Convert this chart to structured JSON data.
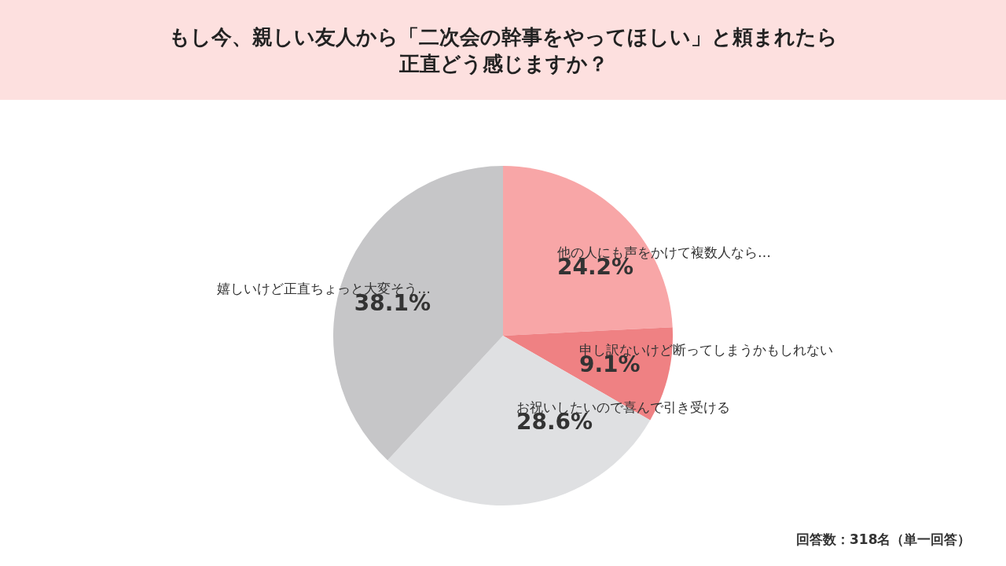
{
  "chart_data": {
    "type": "pie",
    "title": "もし今、親しい友人から「二次会の幹事をやってほしい」と頼まれたら正直どう感じますか？",
    "categories": [
      "他の人にも声をかけて複数人なら…",
      "申し訳ないけど断ってしまうかもしれない",
      "お祝いしたいので喜んで引き受ける",
      "嬉しいけど正直ちょっと大変そう…"
    ],
    "values": [
      24.2,
      9.1,
      28.6,
      38.1
    ],
    "value_labels": [
      "24.2%",
      "9.1%",
      "28.6%",
      "38.1%"
    ],
    "colors": [
      "#f8a6a7",
      "#ef8183",
      "#dfe0e2",
      "#c6c6c8"
    ],
    "legend": false,
    "annotations": [
      "回答数：318名（単一回答）"
    ]
  }
}
